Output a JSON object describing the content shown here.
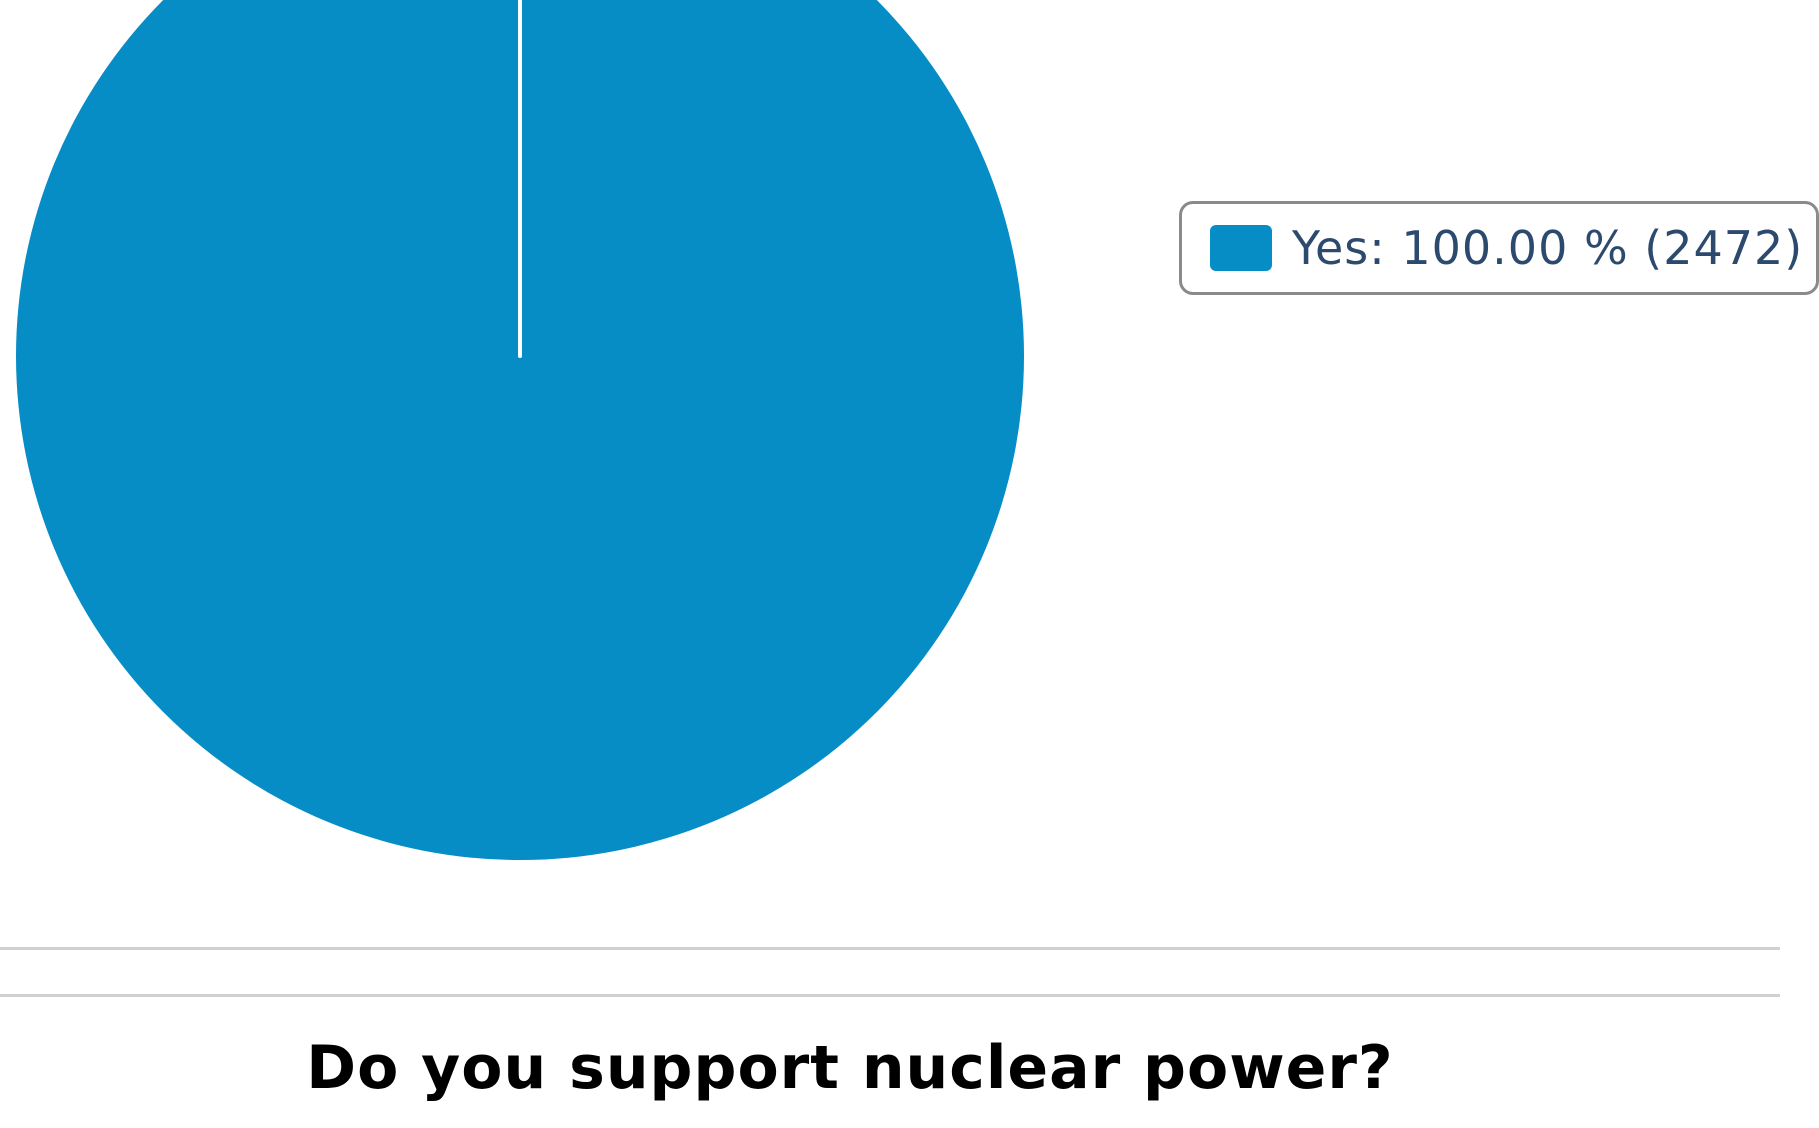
{
  "chart_data": {
    "type": "pie",
    "title": "",
    "slices": [
      {
        "label": "Yes",
        "value": 2472,
        "percent": 100.0,
        "color": "#078dc6"
      }
    ],
    "legend": {
      "placement": "right",
      "entries": [
        "Yes: 100.00 % (2472)"
      ]
    }
  },
  "poll": {
    "question": "Do you support nuclear power?"
  }
}
